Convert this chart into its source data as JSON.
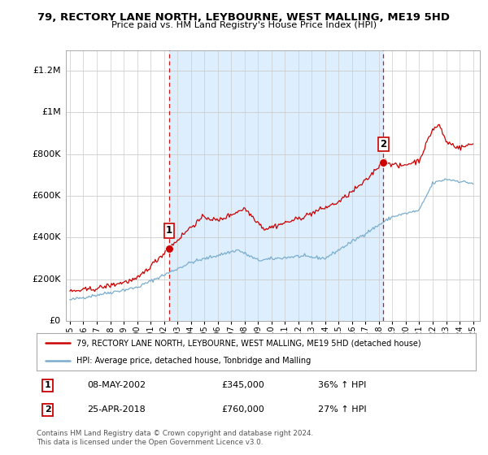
{
  "title1": "79, RECTORY LANE NORTH, LEYBOURNE, WEST MALLING, ME19 5HD",
  "title2": "Price paid vs. HM Land Registry's House Price Index (HPI)",
  "legend_label1": "79, RECTORY LANE NORTH, LEYBOURNE, WEST MALLING, ME19 5HD (detached house)",
  "legend_label2": "HPI: Average price, detached house, Tonbridge and Malling",
  "sale1_date": "08-MAY-2002",
  "sale1_price": "£345,000",
  "sale1_hpi": "36% ↑ HPI",
  "sale2_date": "25-APR-2018",
  "sale2_price": "£760,000",
  "sale2_hpi": "27% ↑ HPI",
  "footer": "Contains HM Land Registry data © Crown copyright and database right 2024.\nThis data is licensed under the Open Government Licence v3.0.",
  "red_color": "#cc0000",
  "blue_color": "#7aadcf",
  "background_color": "#ffffff",
  "fill_color": "#ddeeff",
  "grid_color": "#cccccc",
  "ylim": [
    0,
    1300000
  ],
  "yticks": [
    0,
    200000,
    400000,
    600000,
    800000,
    1000000,
    1200000
  ],
  "ytick_labels": [
    "£0",
    "£200K",
    "£400K",
    "£600K",
    "£800K",
    "£1M",
    "£1.2M"
  ],
  "sale1_x": 2002.37,
  "sale1_y": 345000,
  "sale2_x": 2018.33,
  "sale2_y": 760000,
  "vline1_x": 2002.37,
  "vline2_x": 2018.33,
  "xlim": [
    1994.7,
    2025.5
  ]
}
